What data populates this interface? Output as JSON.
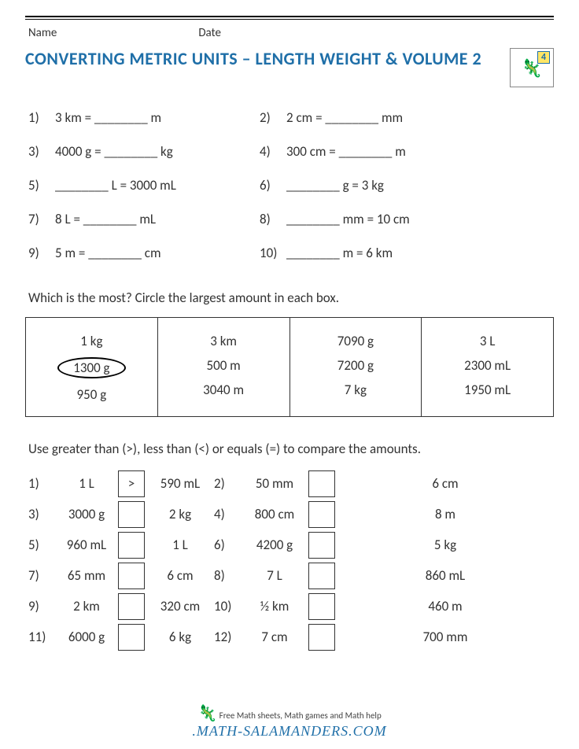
{
  "header": {
    "name_label": "Name",
    "date_label": "Date",
    "title": "CONVERTING METRIC UNITS – LENGTH WEIGHT & VOLUME 2",
    "grade_badge": "4"
  },
  "conversions": [
    {
      "n": "1)",
      "text": "3 km = ________ m"
    },
    {
      "n": "2)",
      "text": "2 cm = ________ mm"
    },
    {
      "n": "3)",
      "text": "4000 g = ________ kg"
    },
    {
      "n": "4)",
      "text": "300 cm = ________ m"
    },
    {
      "n": "5)",
      "text": "________ L = 3000 mL"
    },
    {
      "n": "6)",
      "text": "________ g = 3 kg"
    },
    {
      "n": "7)",
      "text": "8 L = ________ mL"
    },
    {
      "n": "8)",
      "text": "________ mm = 10 cm"
    },
    {
      "n": "9)",
      "text": "5 m = ________ cm"
    },
    {
      "n": "10)",
      "text": "________ m = 6 km"
    }
  ],
  "section2_text": "Which is the most? Circle the largest amount in each box.",
  "boxes": [
    {
      "items": [
        "1 kg",
        "1300 g",
        "950 g"
      ],
      "circled_index": 1
    },
    {
      "items": [
        "3 km",
        "500 m",
        "3040 m"
      ],
      "circled_index": -1
    },
    {
      "items": [
        "7090 g",
        "7200 g",
        "7 kg"
      ],
      "circled_index": -1
    },
    {
      "items": [
        "3 L",
        "2300 mL",
        "1950 mL"
      ],
      "circled_index": -1
    }
  ],
  "section3_text": "Use greater than (>), less than (<) or equals (=) to compare the amounts.",
  "comparisons": [
    {
      "n": "1)",
      "left": "1 L",
      "op": ">",
      "right": "590 mL"
    },
    {
      "n": "2)",
      "left": "50 mm",
      "op": "",
      "right": "6 cm"
    },
    {
      "n": "3)",
      "left": "3000 g",
      "op": "",
      "right": "2 kg"
    },
    {
      "n": "4)",
      "left": "800 cm",
      "op": "",
      "right": "8 m"
    },
    {
      "n": "5)",
      "left": "960 mL",
      "op": "",
      "right": "1 L"
    },
    {
      "n": "6)",
      "left": "4200 g",
      "op": "",
      "right": "5 kg"
    },
    {
      "n": "7)",
      "left": "65 mm",
      "op": "",
      "right": "6 cm"
    },
    {
      "n": "8)",
      "left": "7 L",
      "op": "",
      "right": "860 mL"
    },
    {
      "n": "9)",
      "left": "2 km",
      "op": "",
      "right": "320 cm"
    },
    {
      "n": "10)",
      "left": "½ km",
      "op": "",
      "right": "460 m"
    },
    {
      "n": "11)",
      "left": "6000 g",
      "op": "",
      "right": "6 kg"
    },
    {
      "n": "12)",
      "left": "7 cm",
      "op": "",
      "right": "700 mm"
    }
  ],
  "footer": {
    "tagline": "Free Math sheets, Math games and Math help",
    "domain": ".MATH-SALAMANDERS.COM"
  }
}
